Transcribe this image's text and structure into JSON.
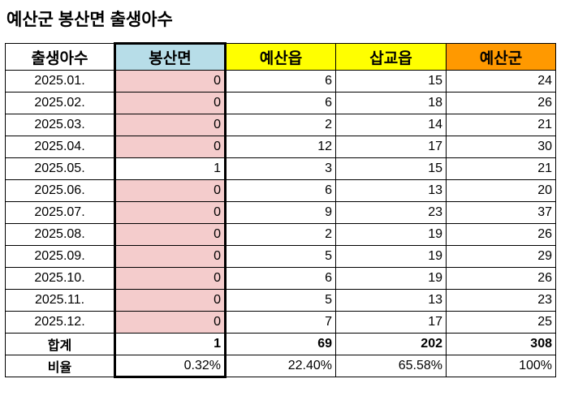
{
  "title": "예산군 봉산면 출생아수",
  "colors": {
    "bongsan_header": "#b7dde8",
    "yesan_eup_header": "#ffff00",
    "sapgyo_header": "#ffff00",
    "yesan_gun_header": "#ff9900",
    "zero_cell": "#f4cccc"
  },
  "headers": [
    "출생아수",
    "봉산면",
    "예산읍",
    "삽교읍",
    "예산군"
  ],
  "rows": [
    [
      "2025.01.",
      "0",
      "6",
      "15",
      "24"
    ],
    [
      "2025.02.",
      "0",
      "6",
      "18",
      "26"
    ],
    [
      "2025.03.",
      "0",
      "2",
      "14",
      "21"
    ],
    [
      "2025.04.",
      "0",
      "12",
      "17",
      "30"
    ],
    [
      "2025.05.",
      "1",
      "3",
      "15",
      "21"
    ],
    [
      "2025.06.",
      "0",
      "6",
      "13",
      "20"
    ],
    [
      "2025.07.",
      "0",
      "9",
      "23",
      "37"
    ],
    [
      "2025.08.",
      "0",
      "2",
      "19",
      "26"
    ],
    [
      "2025.09.",
      "0",
      "5",
      "19",
      "29"
    ],
    [
      "2025.10.",
      "0",
      "6",
      "19",
      "26"
    ],
    [
      "2025.11.",
      "0",
      "5",
      "13",
      "23"
    ],
    [
      "2025.12.",
      "0",
      "7",
      "17",
      "25"
    ]
  ],
  "total": [
    "합계",
    "1",
    "69",
    "202",
    "308"
  ],
  "ratio": [
    "비율",
    "0.32%",
    "22.40%",
    "65.58%",
    "100%"
  ]
}
